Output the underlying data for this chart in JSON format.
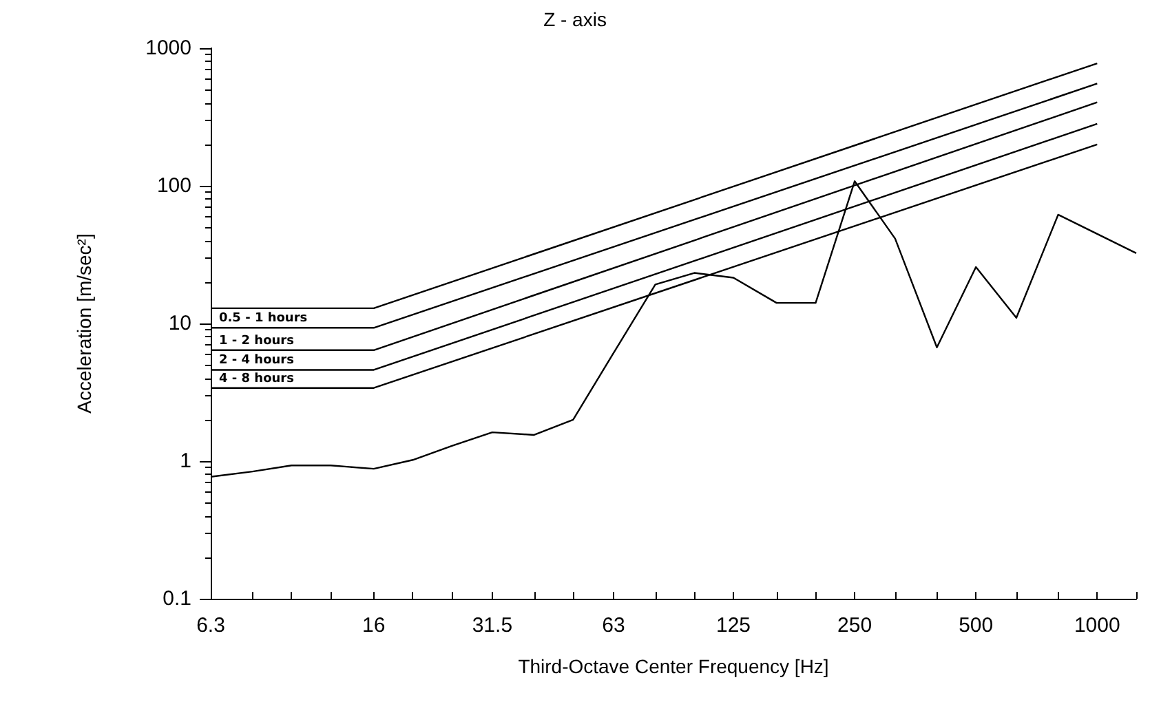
{
  "chart_data": {
    "type": "line",
    "title": "Z - axis",
    "xlabel": "Third-Octave Center Frequency [Hz]",
    "ylabel": "Acceleration [m/sec²]",
    "x": [
      6.3,
      8,
      10,
      12.5,
      16,
      20,
      25,
      31.5,
      40,
      50,
      63,
      80,
      100,
      125,
      160,
      200,
      250,
      315,
      400,
      500,
      630,
      800,
      1000,
      1250
    ],
    "series": [
      {
        "color": "#000000",
        "values": [
          0.77,
          0.84,
          0.93,
          0.93,
          0.88,
          1.02,
          1.29,
          1.62,
          1.55,
          2.0,
          6.1,
          19.2,
          23.3,
          21.5,
          14.1,
          14.1,
          108,
          41.4,
          6.7,
          25.7,
          11.0,
          61.7,
          44.7,
          32.4
        ]
      },
      {
        "color": "#000000",
        "x": [
          6.3,
          16,
          1000
        ],
        "values": [
          12.9,
          12.9,
          776
        ]
      },
      {
        "name": "0.5 - 1 hours",
        "color": "#000000",
        "x": [
          6.3,
          16,
          1000
        ],
        "values": [
          9.3,
          9.3,
          553
        ]
      },
      {
        "name": "1 - 2 hours",
        "color": "#000000",
        "x": [
          6.3,
          16,
          1000
        ],
        "values": [
          6.4,
          6.4,
          404
        ]
      },
      {
        "name": "2 - 4 hours",
        "color": "#000000",
        "x": [
          6.3,
          16,
          1000
        ],
        "values": [
          4.6,
          4.6,
          282
        ]
      },
      {
        "name": "4 - 8 hours",
        "color": "#000000",
        "x": [
          6.3,
          16,
          1000
        ],
        "values": [
          3.4,
          3.4,
          200
        ]
      }
    ],
    "xlim": [
      6.3,
      1250
    ],
    "xticks": [
      6.3,
      {
        "value": 8,
        "label": null
      },
      {
        "value": 10,
        "label": null
      },
      {
        "value": 12.5,
        "label": null
      },
      16,
      {
        "value": 20,
        "label": null
      },
      {
        "value": 25,
        "label": null
      },
      31.5,
      {
        "value": 40,
        "label": null
      },
      {
        "value": 50,
        "label": null
      },
      63,
      {
        "value": 80,
        "label": null
      },
      {
        "value": 100,
        "label": null
      },
      125,
      {
        "value": 160,
        "label": null
      },
      {
        "value": 200,
        "label": null
      },
      250,
      {
        "value": 315,
        "label": null
      },
      {
        "value": 400,
        "label": null
      },
      500,
      {
        "value": 630,
        "label": null
      },
      {
        "value": 800,
        "label": null
      },
      1000,
      {
        "value": 1250,
        "label": null
      }
    ],
    "ylim": [
      0.1,
      1000
    ],
    "yticks": [
      0.1,
      1,
      10,
      100,
      1000
    ],
    "log": "xy",
    "grid": false,
    "legend": false,
    "marker": "none",
    "line_style": "solid"
  }
}
